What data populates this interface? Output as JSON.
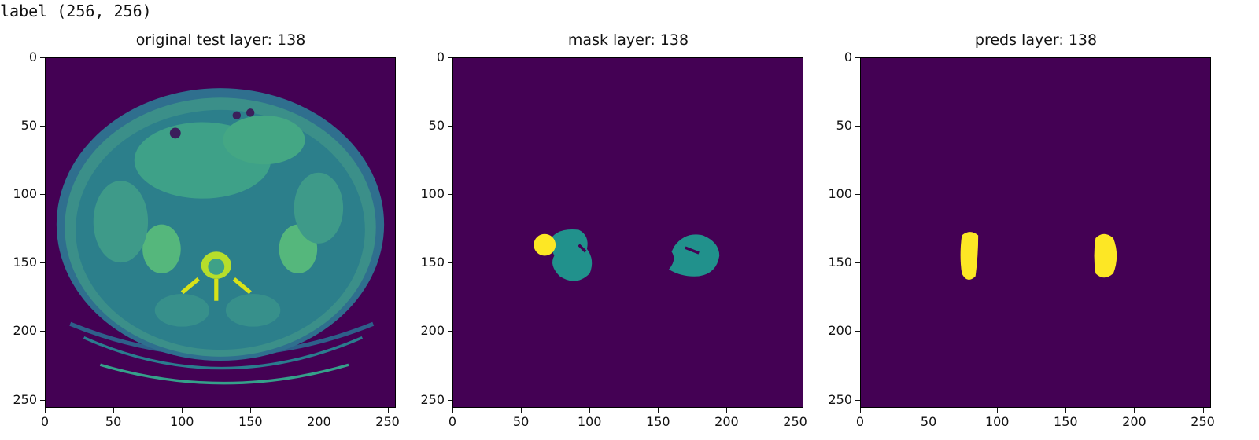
{
  "output_line": "label (256, 256)",
  "colors": {
    "background": "#440154",
    "teal": "#21918c",
    "yellow": "#fde725"
  },
  "panels": [
    {
      "title": "original test layer: 138",
      "image": "ct-scan-slice",
      "xticks": [
        "0",
        "50",
        "100",
        "150",
        "200",
        "250"
      ],
      "yticks": [
        "0",
        "50",
        "100",
        "150",
        "200",
        "250"
      ]
    },
    {
      "title": "mask layer: 138",
      "image": "kidney-mask",
      "xticks": [
        "0",
        "50",
        "100",
        "150",
        "200",
        "250"
      ],
      "yticks": [
        "0",
        "50",
        "100",
        "150",
        "200",
        "250"
      ]
    },
    {
      "title": "preds layer: 138",
      "image": "kidney-prediction",
      "xticks": [
        "0",
        "50",
        "100",
        "150",
        "200",
        "250"
      ],
      "yticks": [
        "0",
        "50",
        "100",
        "150",
        "200",
        "250"
      ]
    }
  ]
}
